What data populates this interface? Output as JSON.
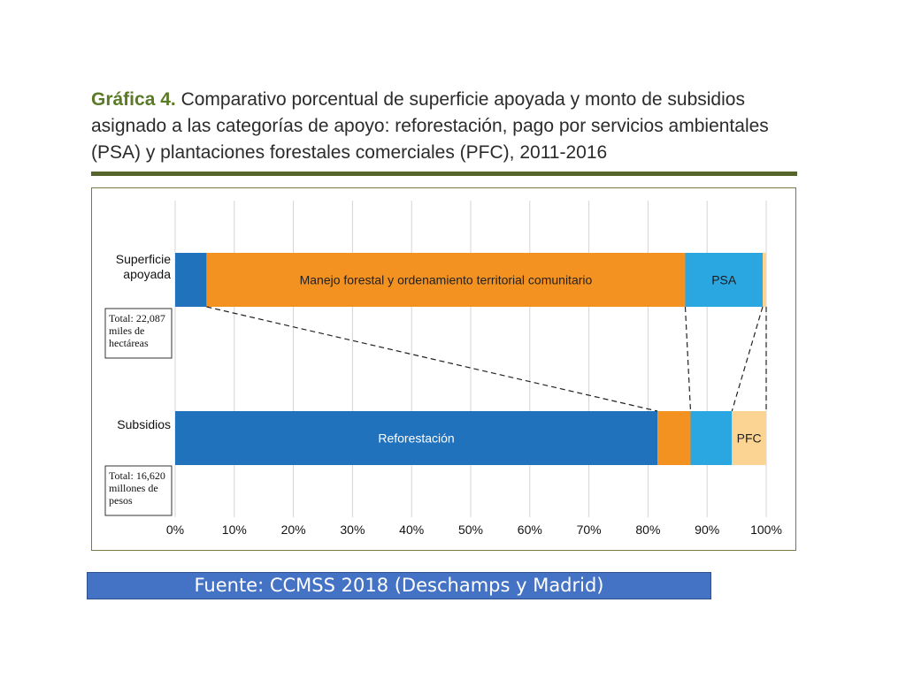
{
  "title": {
    "label": "Gráfica 4.",
    "text": " Comparativo porcentual de superficie apoyada y monto de subsidios asignado a las categorías de apoyo: reforestación, pago por servicios ambientales (PSA) y plantaciones forestales comerciales (PFC), 2011-2016"
  },
  "source": "Fuente: CCMSS 2018 (Deschamps y Madrid)",
  "chart_data": {
    "type": "bar",
    "orientation": "horizontal",
    "stacked": true,
    "percent": true,
    "xlim": [
      0,
      100
    ],
    "x_ticks": [
      "0%",
      "10%",
      "20%",
      "30%",
      "40%",
      "50%",
      "60%",
      "70%",
      "80%",
      "90%",
      "100%"
    ],
    "grid": true,
    "categories": [
      "Superficie apoyada",
      "Subsidios"
    ],
    "category_lines": [
      [
        "Superficie",
        "apoyada"
      ],
      [
        "Subsidios"
      ]
    ],
    "totals": [
      [
        "Total: 22,087",
        "miles de",
        "hectáreas"
      ],
      [
        "Total: 16,620",
        "millones de",
        "pesos"
      ]
    ],
    "series": [
      {
        "label": "Reforestación",
        "color": "#2172bd",
        "values": [
          5.3,
          81.6
        ],
        "show_label_on": [
          1
        ]
      },
      {
        "label": "Manejo forestal y ordenamiento territorial comunitario",
        "color": "#f39121",
        "values": [
          81.0,
          5.6
        ],
        "show_label_on": [
          0
        ]
      },
      {
        "label": "PSA",
        "color": "#2aa6e0",
        "values": [
          13.1,
          7.0
        ],
        "show_label_on": [
          0
        ]
      },
      {
        "label": "PFC",
        "color": "#fbd393",
        "values": [
          0.6,
          5.8
        ],
        "show_label_on": [
          1
        ]
      }
    ],
    "label_colors": [
      "#ffffff",
      "#222222",
      "#1a1a1a",
      "#222222"
    ],
    "connectors": "dashed"
  }
}
